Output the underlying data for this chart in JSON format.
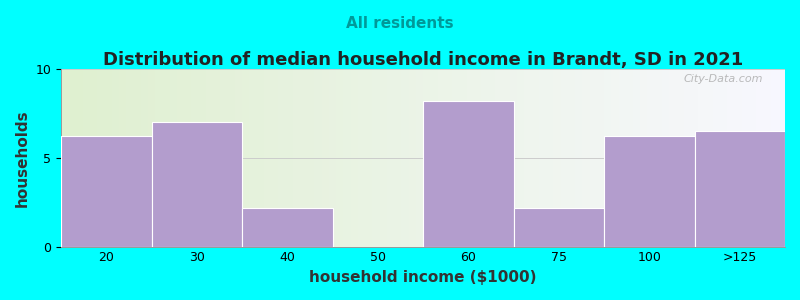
{
  "title": "Distribution of median household income in Brandt, SD in 2021",
  "subtitle": "All residents",
  "xlabel": "household income ($1000)",
  "ylabel": "households",
  "background_color": "#00FFFF",
  "plot_bg_left": "#e8f5e0",
  "plot_bg_right": "#f8f8ff",
  "bar_color": "#b39dcd",
  "bar_edge_color": "#b39dcd",
  "categories": [
    "20",
    "30",
    "40",
    "50",
    "60",
    "75",
    "100",
    ">125"
  ],
  "values": [
    6.2,
    7.0,
    2.2,
    0,
    8.2,
    2.2,
    6.2,
    6.5
  ],
  "ylim": [
    0,
    10
  ],
  "yticks": [
    0,
    5,
    10
  ],
  "title_fontsize": 13,
  "subtitle_fontsize": 11,
  "axis_label_fontsize": 11,
  "watermark_text": "City-Data.com"
}
